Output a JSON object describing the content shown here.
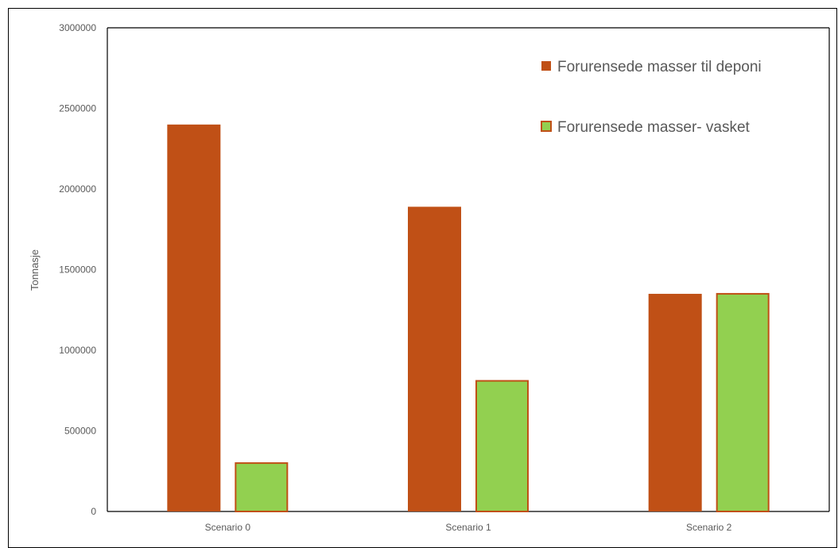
{
  "chart_data": {
    "type": "bar",
    "categories": [
      "Scenario 0",
      "Scenario 1",
      "Scenario 2"
    ],
    "series": [
      {
        "name": "Forurensede masser til deponi",
        "values": [
          2400000,
          1890000,
          1350000
        ],
        "color": "#C05016",
        "stroke": "#C05016"
      },
      {
        "name": "Forurensede masser- vasket",
        "values": [
          305000,
          815000,
          1355000
        ],
        "color": "#92D050",
        "stroke": "#C05016"
      }
    ],
    "ylabel": "Tonnasje",
    "xlabel": "",
    "title": "",
    "ylim": [
      0,
      3000000
    ],
    "yticks": [
      "0",
      "500000",
      "1000000",
      "1500000",
      "2000000",
      "2500000",
      "3000000"
    ],
    "grid": false,
    "legend_position": "top-right"
  }
}
